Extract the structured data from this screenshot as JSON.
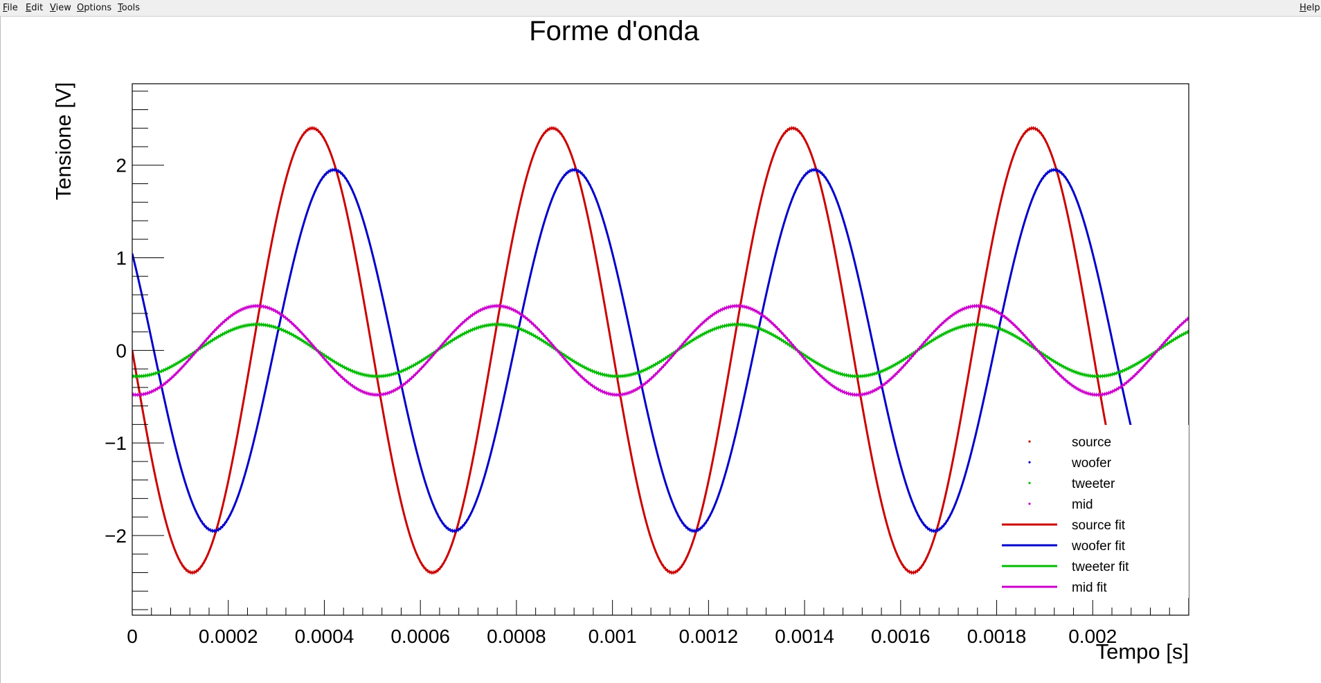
{
  "menu": {
    "file": "File",
    "edit": "Edit",
    "view": "View",
    "options": "Options",
    "tools": "Tools",
    "help": "Help"
  },
  "chart_data": {
    "type": "scatter",
    "title": "Forme d'onda",
    "xlabel": "Tempo [s]",
    "ylabel": "Tensione [V]",
    "xlim": [
      0,
      0.0022
    ],
    "ylim": [
      -2.86,
      2.88
    ],
    "x_ticks": [
      0,
      0.0002,
      0.0004,
      0.0006,
      0.0008,
      0.001,
      0.0012,
      0.0014,
      0.0016,
      0.0018,
      0.002
    ],
    "x_tick_labels": [
      "0",
      "0.0002",
      "0.0004",
      "0.0006",
      "0.0008",
      "0.001",
      "0.0012",
      "0.0014",
      "0.0016",
      "0.0018",
      "0.002"
    ],
    "y_ticks": [
      -2,
      -1,
      0,
      1,
      2
    ],
    "y_tick_labels": [
      "−2",
      "−1",
      "0",
      "1",
      "2"
    ],
    "grid": false,
    "legend_position": "bottom-right",
    "frequency_hz": 2000,
    "series": [
      {
        "name": "source",
        "color": "#cc0000",
        "amplitude": 2.4,
        "peak_time": 0.000375,
        "kind": "points"
      },
      {
        "name": "woofer",
        "color": "#0000cc",
        "amplitude": 1.95,
        "peak_time": 0.00042,
        "kind": "points"
      },
      {
        "name": "tweeter",
        "color": "#00bb00",
        "amplitude": 0.28,
        "peak_time": 0.00026,
        "kind": "points"
      },
      {
        "name": "mid",
        "color": "#cc00cc",
        "amplitude": 0.48,
        "peak_time": 0.00026,
        "kind": "points"
      },
      {
        "name": "source fit",
        "color": "#cc0000",
        "amplitude": 2.4,
        "peak_time": 0.000375,
        "kind": "line"
      },
      {
        "name": "woofer fit",
        "color": "#0000cc",
        "amplitude": 1.95,
        "peak_time": 0.00042,
        "kind": "line"
      },
      {
        "name": "tweeter fit",
        "color": "#00bb00",
        "amplitude": 0.28,
        "peak_time": 0.00026,
        "kind": "line"
      },
      {
        "name": "mid fit",
        "color": "#cc00cc",
        "amplitude": 0.48,
        "peak_time": 0.00026,
        "kind": "line"
      }
    ]
  }
}
